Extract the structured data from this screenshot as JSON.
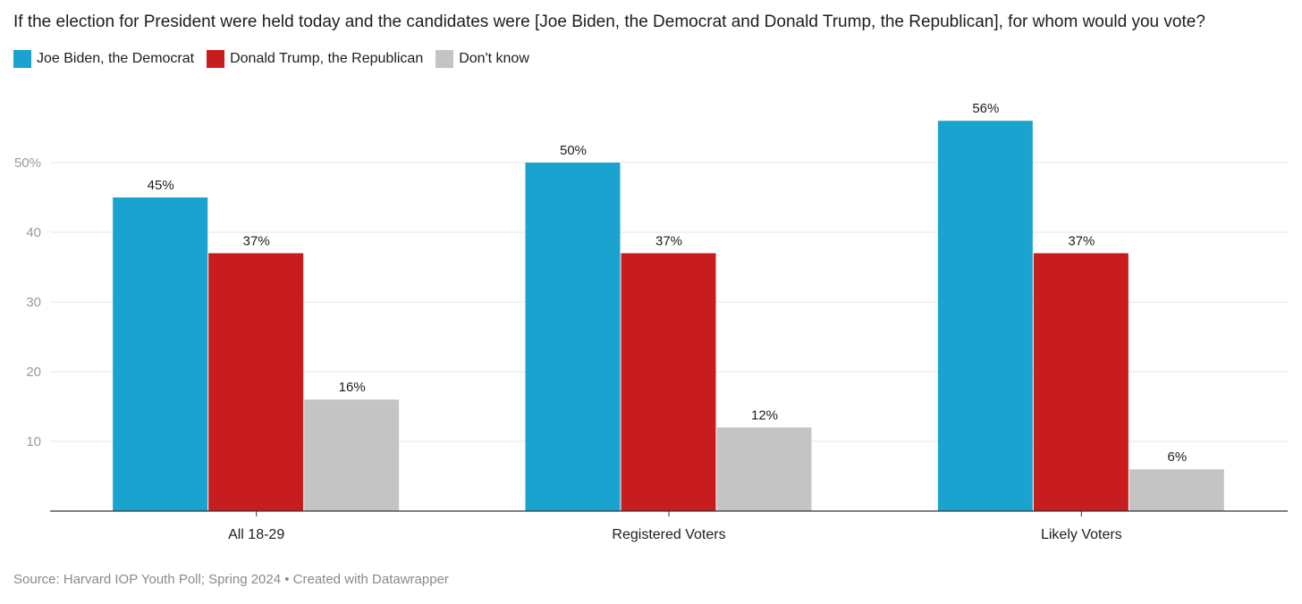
{
  "chart_data": {
    "type": "bar",
    "title": "If the election for President were held today and the candidates were [Joe Biden, the Democrat and Donald Trump, the Republican], for whom would you vote?",
    "categories": [
      "All 18-29",
      "Registered Voters",
      "Likely Voters"
    ],
    "series": [
      {
        "name": "Joe Biden, the Democrat",
        "color": "#1aa3cf",
        "values": [
          45,
          50,
          56
        ]
      },
      {
        "name": "Donald Trump, the Republican",
        "color": "#c81d1f",
        "values": [
          37,
          37,
          37
        ]
      },
      {
        "name": "Don't know",
        "color": "#c4c4c4",
        "values": [
          16,
          12,
          6
        ]
      }
    ],
    "y_ticks": [
      {
        "value": 10,
        "label": "10"
      },
      {
        "value": 20,
        "label": "20"
      },
      {
        "value": 30,
        "label": "30"
      },
      {
        "value": 40,
        "label": "40"
      },
      {
        "value": 50,
        "label": "50%"
      }
    ],
    "ylim": [
      0,
      58
    ],
    "value_suffix": "%",
    "grid": true,
    "legend_position": "top-left",
    "source": "Source: Harvard IOP Youth Poll; Spring 2024 • Created with Datawrapper"
  }
}
